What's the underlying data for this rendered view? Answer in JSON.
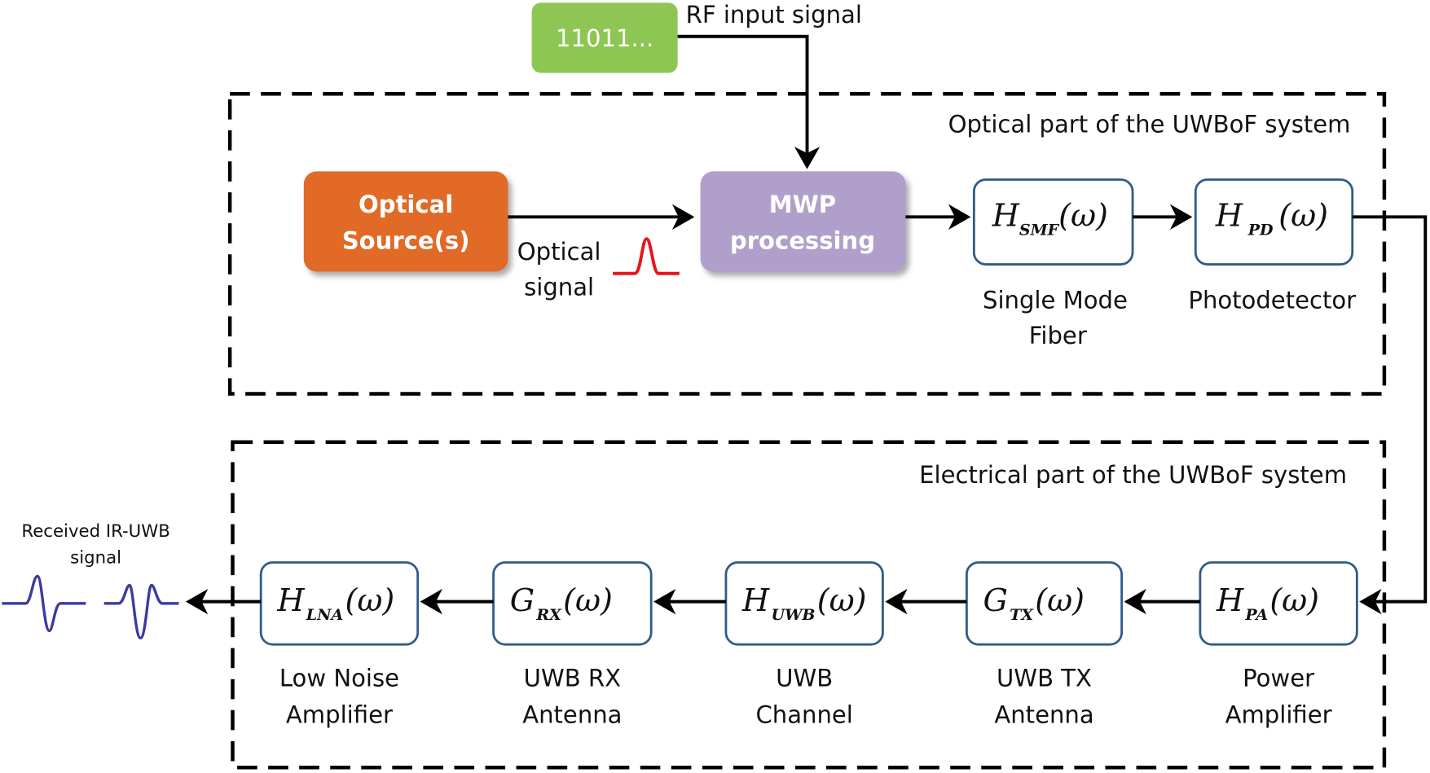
{
  "input": {
    "bits": "11011...",
    "label": "RF input signal"
  },
  "optical": {
    "title": "Optical part of the UWBoF system",
    "source": [
      "Optical",
      "Source(s)"
    ],
    "signal_label": [
      "Optical",
      "signal"
    ],
    "mwp": [
      "MWP",
      "processing"
    ],
    "smf": {
      "sym": "H",
      "sub": "SMF",
      "arg": "(ω)",
      "label": [
        "Single Mode",
        "Fiber"
      ]
    },
    "pd": {
      "sym": "H",
      "sub": "PD",
      "arg": "(ω)",
      "label": [
        "Photodetector"
      ]
    }
  },
  "electrical": {
    "title": "Electrical part of the UWBoF system",
    "blocks": [
      {
        "sym": "H",
        "sub": "LNA",
        "arg": "(ω)",
        "label": [
          "Low Noise",
          "Amplifier"
        ]
      },
      {
        "sym": "G",
        "sub": "RX",
        "arg": "(ω)",
        "label": [
          "UWB RX",
          "Antenna"
        ]
      },
      {
        "sym": "H",
        "sub": "UWB",
        "arg": "(ω)",
        "label": [
          "UWB",
          "Channel"
        ]
      },
      {
        "sym": "G",
        "sub": "TX",
        "arg": "(ω)",
        "label": [
          "UWB TX",
          "Antenna"
        ]
      },
      {
        "sym": "H",
        "sub": "PA",
        "arg": "(ω)",
        "label": [
          "Power",
          "Amplifier"
        ]
      }
    ],
    "received": [
      "Received  IR-UWB",
      "signal"
    ]
  },
  "colors": {
    "input": "#8DC653",
    "source": "#E06A26",
    "mwp": "#B09FCB",
    "box_border": "#2E5C8A",
    "optical_pulse": "#E8141B",
    "uwb_pulse": "#3B3BA0"
  }
}
